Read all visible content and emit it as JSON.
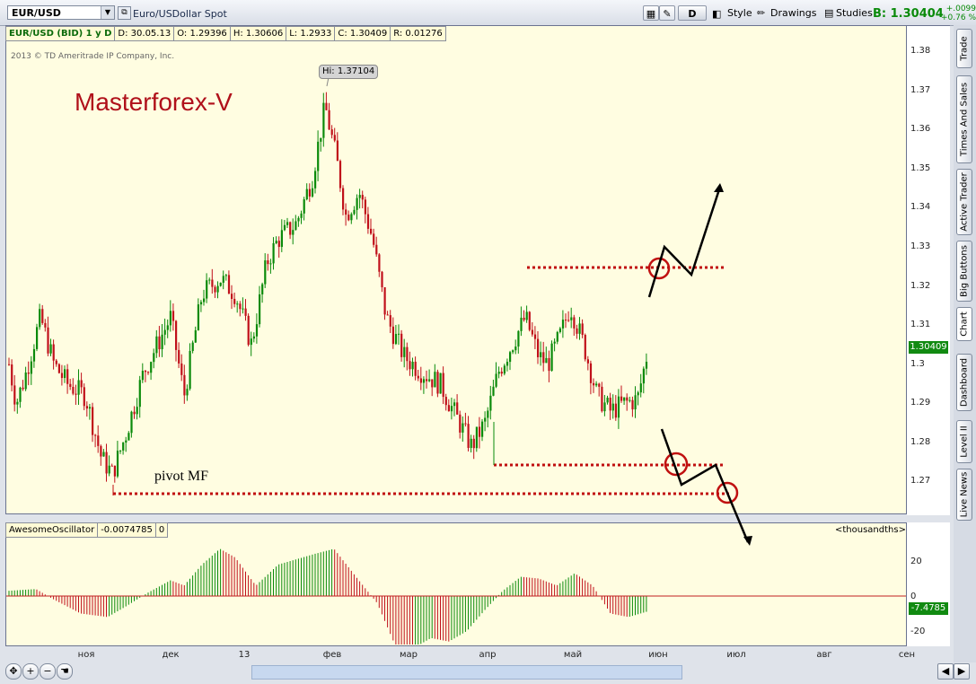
{
  "toolbar": {
    "symbol": "EUR/USD",
    "description": "Euro/USDollar Spot",
    "period_btn": "D",
    "style_btn": "Style",
    "drawings_btn": "Drawings",
    "studies_btn": "Studies",
    "bid": "B: 1.30404",
    "change_abs": "+.0099",
    "change_pct": "+0.76 %"
  },
  "info": {
    "title": "EUR/USD (BID) 1 y D",
    "date": "D: 30.05.13",
    "open": "O: 1.29396",
    "high": "H: 1.30606",
    "low": "L: 1.2933",
    "close": "C: 1.30409",
    "range": "R: 0.01276"
  },
  "copyright": "2013 © TD Ameritrade IP Company, Inc.",
  "annotation_title": "Masterforex-V",
  "pivot_label": "pivot MF",
  "hi_label": "Hi: 1.37104",
  "price_axis": [
    "1.38",
    "1.37",
    "1.36",
    "1.35",
    "1.34",
    "1.33",
    "1.32",
    "1.31",
    "1.3",
    "1.29",
    "1.28",
    "1.27"
  ],
  "price_current": "1.30409",
  "oscillator": {
    "name": "AwesomeOscillator",
    "value": "-0.0074785",
    "param": "0",
    "units": "<thousandths>",
    "axis": [
      "20",
      "0",
      "-20"
    ],
    "current": "-7.4785"
  },
  "months": [
    "ноя",
    "дек",
    "13",
    "фев",
    "мар",
    "апр",
    "май",
    "июн",
    "июл",
    "авг",
    "сен"
  ],
  "sidebar": [
    "Trade",
    "Times And Sales",
    "Active Trader",
    "Big Buttons",
    "Chart",
    "Dashboard",
    "Level II",
    "Live News"
  ],
  "colors": {
    "up": "#0a8a0a",
    "down": "#c0101a",
    "background": "#fffde1",
    "accent": "#118a11"
  }
}
